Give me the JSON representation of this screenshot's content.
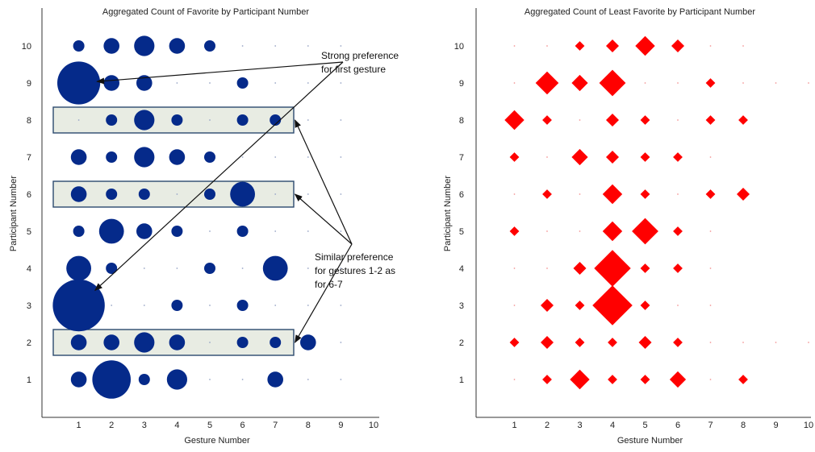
{
  "chart_data": [
    {
      "type": "scatter",
      "marker": "circle",
      "title": "Aggregated Count of Favorite by Participant Number",
      "xlabel": "Gesture Number",
      "ylabel": "Participant Number",
      "xlim": [
        0,
        10
      ],
      "ylim": [
        0.5,
        10.5
      ],
      "xticks": [
        "1",
        "2",
        "3",
        "4",
        "5",
        "6",
        "7",
        "8",
        "9",
        "10"
      ],
      "yticks": [
        "1",
        "2",
        "3",
        "4",
        "5",
        "6",
        "7",
        "8",
        "9",
        "10"
      ],
      "grid": false,
      "color": "#052a8a",
      "points": [
        {
          "x": 1,
          "y": 10,
          "size": 1
        },
        {
          "x": 2,
          "y": 10,
          "size": 2
        },
        {
          "x": 3,
          "y": 10,
          "size": 3
        },
        {
          "x": 4,
          "y": 10,
          "size": 2
        },
        {
          "x": 5,
          "y": 10,
          "size": 1
        },
        {
          "x": 6,
          "y": 10,
          "size": 0
        },
        {
          "x": 7,
          "y": 10,
          "size": 0
        },
        {
          "x": 8,
          "y": 10,
          "size": 0
        },
        {
          "x": 9,
          "y": 10,
          "size": 0
        },
        {
          "x": 1,
          "y": 9,
          "size": 8
        },
        {
          "x": 2,
          "y": 9,
          "size": 2
        },
        {
          "x": 3,
          "y": 9,
          "size": 2
        },
        {
          "x": 4,
          "y": 9,
          "size": 0
        },
        {
          "x": 5,
          "y": 9,
          "size": 0
        },
        {
          "x": 6,
          "y": 9,
          "size": 1
        },
        {
          "x": 7,
          "y": 9,
          "size": 0
        },
        {
          "x": 8,
          "y": 9,
          "size": 0
        },
        {
          "x": 9,
          "y": 9,
          "size": 0
        },
        {
          "x": 1,
          "y": 8,
          "size": 0
        },
        {
          "x": 2,
          "y": 8,
          "size": 1
        },
        {
          "x": 3,
          "y": 8,
          "size": 3
        },
        {
          "x": 4,
          "y": 8,
          "size": 1
        },
        {
          "x": 5,
          "y": 8,
          "size": 0
        },
        {
          "x": 6,
          "y": 8,
          "size": 1
        },
        {
          "x": 7,
          "y": 8,
          "size": 1
        },
        {
          "x": 8,
          "y": 8,
          "size": 0
        },
        {
          "x": 9,
          "y": 8,
          "size": 0
        },
        {
          "x": 1,
          "y": 7,
          "size": 2
        },
        {
          "x": 2,
          "y": 7,
          "size": 1
        },
        {
          "x": 3,
          "y": 7,
          "size": 3
        },
        {
          "x": 4,
          "y": 7,
          "size": 2
        },
        {
          "x": 5,
          "y": 7,
          "size": 1
        },
        {
          "x": 6,
          "y": 7,
          "size": 0
        },
        {
          "x": 7,
          "y": 7,
          "size": 0
        },
        {
          "x": 8,
          "y": 7,
          "size": 0
        },
        {
          "x": 9,
          "y": 7,
          "size": 0
        },
        {
          "x": 1,
          "y": 6,
          "size": 2
        },
        {
          "x": 2,
          "y": 6,
          "size": 1
        },
        {
          "x": 3,
          "y": 6,
          "size": 1
        },
        {
          "x": 4,
          "y": 6,
          "size": 0
        },
        {
          "x": 5,
          "y": 6,
          "size": 1
        },
        {
          "x": 6,
          "y": 6,
          "size": 4
        },
        {
          "x": 7,
          "y": 6,
          "size": 0
        },
        {
          "x": 8,
          "y": 6,
          "size": 0
        },
        {
          "x": 9,
          "y": 6,
          "size": 0
        },
        {
          "x": 1,
          "y": 5,
          "size": 1
        },
        {
          "x": 2,
          "y": 5,
          "size": 4
        },
        {
          "x": 3,
          "y": 5,
          "size": 2
        },
        {
          "x": 4,
          "y": 5,
          "size": 1
        },
        {
          "x": 5,
          "y": 5,
          "size": 0
        },
        {
          "x": 6,
          "y": 5,
          "size": 1
        },
        {
          "x": 7,
          "y": 5,
          "size": 0
        },
        {
          "x": 8,
          "y": 5,
          "size": 0
        },
        {
          "x": 9,
          "y": 5,
          "size": 0
        },
        {
          "x": 1,
          "y": 4,
          "size": 4
        },
        {
          "x": 2,
          "y": 4,
          "size": 1
        },
        {
          "x": 3,
          "y": 4,
          "size": 0
        },
        {
          "x": 4,
          "y": 4,
          "size": 0
        },
        {
          "x": 5,
          "y": 4,
          "size": 1
        },
        {
          "x": 6,
          "y": 4,
          "size": 0
        },
        {
          "x": 7,
          "y": 4,
          "size": 4
        },
        {
          "x": 8,
          "y": 4,
          "size": 0
        },
        {
          "x": 9,
          "y": 4,
          "size": 0
        },
        {
          "x": 1,
          "y": 3,
          "size": 10
        },
        {
          "x": 2,
          "y": 3,
          "size": 0
        },
        {
          "x": 3,
          "y": 3,
          "size": 0
        },
        {
          "x": 4,
          "y": 3,
          "size": 1
        },
        {
          "x": 5,
          "y": 3,
          "size": 0
        },
        {
          "x": 6,
          "y": 3,
          "size": 1
        },
        {
          "x": 7,
          "y": 3,
          "size": 0
        },
        {
          "x": 8,
          "y": 3,
          "size": 0
        },
        {
          "x": 9,
          "y": 3,
          "size": 0
        },
        {
          "x": 1,
          "y": 2,
          "size": 2
        },
        {
          "x": 2,
          "y": 2,
          "size": 2
        },
        {
          "x": 3,
          "y": 2,
          "size": 3
        },
        {
          "x": 4,
          "y": 2,
          "size": 2
        },
        {
          "x": 5,
          "y": 2,
          "size": 0
        },
        {
          "x": 6,
          "y": 2,
          "size": 1
        },
        {
          "x": 7,
          "y": 2,
          "size": 1
        },
        {
          "x": 8,
          "y": 2,
          "size": 2
        },
        {
          "x": 9,
          "y": 2,
          "size": 0
        },
        {
          "x": 1,
          "y": 1,
          "size": 2
        },
        {
          "x": 2,
          "y": 1,
          "size": 7
        },
        {
          "x": 3,
          "y": 1,
          "size": 1
        },
        {
          "x": 4,
          "y": 1,
          "size": 3
        },
        {
          "x": 5,
          "y": 1,
          "size": 0
        },
        {
          "x": 6,
          "y": 1,
          "size": 0
        },
        {
          "x": 7,
          "y": 1,
          "size": 2
        },
        {
          "x": 8,
          "y": 1,
          "size": 0
        },
        {
          "x": 9,
          "y": 1,
          "size": 0
        }
      ],
      "highlight_rows": [
        8,
        6,
        2
      ],
      "highlight_color": "#e8ece3",
      "highlight_border": "#2c4a6e",
      "annotations": [
        {
          "text": [
            "Strong preference",
            "for first gesture"
          ],
          "points_to": [
            [
              1,
              9
            ],
            [
              1,
              3
            ]
          ]
        },
        {
          "text": [
            "Similar preference",
            "for gestures 1-2 as",
            "for 6-7"
          ],
          "points_to": [
            [
              7.6,
              8
            ],
            [
              7.6,
              6
            ],
            [
              7.6,
              2
            ]
          ]
        }
      ]
    },
    {
      "type": "scatter",
      "marker": "diamond",
      "title": "Aggregated Count of Least Favorite by Participant Number",
      "xlabel": "Gesture Number",
      "ylabel": "Participant Number",
      "xlim": [
        0,
        10
      ],
      "ylim": [
        0.5,
        10.5
      ],
      "xticks": [
        "1",
        "2",
        "3",
        "4",
        "5",
        "6",
        "7",
        "8",
        "9",
        "10"
      ],
      "yticks": [
        "1",
        "2",
        "3",
        "4",
        "5",
        "6",
        "7",
        "8",
        "9",
        "10"
      ],
      "grid": false,
      "color": "#ff0000",
      "points": [
        {
          "x": 1,
          "y": 10,
          "size": 0
        },
        {
          "x": 2,
          "y": 10,
          "size": 0
        },
        {
          "x": 3,
          "y": 10,
          "size": 1
        },
        {
          "x": 4,
          "y": 10,
          "size": 2
        },
        {
          "x": 5,
          "y": 10,
          "size": 4
        },
        {
          "x": 6,
          "y": 10,
          "size": 2
        },
        {
          "x": 7,
          "y": 10,
          "size": 0
        },
        {
          "x": 8,
          "y": 10,
          "size": 0
        },
        {
          "x": 1,
          "y": 9,
          "size": 0
        },
        {
          "x": 2,
          "y": 9,
          "size": 5
        },
        {
          "x": 3,
          "y": 9,
          "size": 3
        },
        {
          "x": 4,
          "y": 9,
          "size": 6
        },
        {
          "x": 5,
          "y": 9,
          "size": 0
        },
        {
          "x": 6,
          "y": 9,
          "size": 0
        },
        {
          "x": 7,
          "y": 9,
          "size": 1
        },
        {
          "x": 8,
          "y": 9,
          "size": 0
        },
        {
          "x": 9,
          "y": 9,
          "size": 0
        },
        {
          "x": 10,
          "y": 9,
          "size": 0
        },
        {
          "x": 1,
          "y": 8,
          "size": 4
        },
        {
          "x": 2,
          "y": 8,
          "size": 1
        },
        {
          "x": 3,
          "y": 8,
          "size": 0
        },
        {
          "x": 4,
          "y": 8,
          "size": 2
        },
        {
          "x": 5,
          "y": 8,
          "size": 1
        },
        {
          "x": 6,
          "y": 8,
          "size": 0
        },
        {
          "x": 7,
          "y": 8,
          "size": 1
        },
        {
          "x": 8,
          "y": 8,
          "size": 1
        },
        {
          "x": 1,
          "y": 7,
          "size": 1
        },
        {
          "x": 2,
          "y": 7,
          "size": 0
        },
        {
          "x": 3,
          "y": 7,
          "size": 3
        },
        {
          "x": 4,
          "y": 7,
          "size": 2
        },
        {
          "x": 5,
          "y": 7,
          "size": 1
        },
        {
          "x": 6,
          "y": 7,
          "size": 1
        },
        {
          "x": 7,
          "y": 7,
          "size": 0
        },
        {
          "x": 1,
          "y": 6,
          "size": 0
        },
        {
          "x": 2,
          "y": 6,
          "size": 1
        },
        {
          "x": 3,
          "y": 6,
          "size": 0
        },
        {
          "x": 4,
          "y": 6,
          "size": 4
        },
        {
          "x": 5,
          "y": 6,
          "size": 1
        },
        {
          "x": 6,
          "y": 6,
          "size": 0
        },
        {
          "x": 7,
          "y": 6,
          "size": 1
        },
        {
          "x": 8,
          "y": 6,
          "size": 2
        },
        {
          "x": 1,
          "y": 5,
          "size": 1
        },
        {
          "x": 2,
          "y": 5,
          "size": 0
        },
        {
          "x": 3,
          "y": 5,
          "size": 0
        },
        {
          "x": 4,
          "y": 5,
          "size": 4
        },
        {
          "x": 5,
          "y": 5,
          "size": 6
        },
        {
          "x": 6,
          "y": 5,
          "size": 1
        },
        {
          "x": 7,
          "y": 5,
          "size": 0
        },
        {
          "x": 1,
          "y": 4,
          "size": 0
        },
        {
          "x": 2,
          "y": 4,
          "size": 0
        },
        {
          "x": 3,
          "y": 4,
          "size": 2
        },
        {
          "x": 4,
          "y": 4,
          "size": 9
        },
        {
          "x": 5,
          "y": 4,
          "size": 1
        },
        {
          "x": 6,
          "y": 4,
          "size": 1
        },
        {
          "x": 7,
          "y": 4,
          "size": 0
        },
        {
          "x": 1,
          "y": 3,
          "size": 0
        },
        {
          "x": 2,
          "y": 3,
          "size": 2
        },
        {
          "x": 3,
          "y": 3,
          "size": 1
        },
        {
          "x": 4,
          "y": 3,
          "size": 10
        },
        {
          "x": 5,
          "y": 3,
          "size": 1
        },
        {
          "x": 6,
          "y": 3,
          "size": 0
        },
        {
          "x": 7,
          "y": 3,
          "size": 0
        },
        {
          "x": 1,
          "y": 2,
          "size": 1
        },
        {
          "x": 2,
          "y": 2,
          "size": 2
        },
        {
          "x": 3,
          "y": 2,
          "size": 1
        },
        {
          "x": 4,
          "y": 2,
          "size": 1
        },
        {
          "x": 5,
          "y": 2,
          "size": 2
        },
        {
          "x": 6,
          "y": 2,
          "size": 1
        },
        {
          "x": 7,
          "y": 2,
          "size": 0
        },
        {
          "x": 8,
          "y": 2,
          "size": 0
        },
        {
          "x": 9,
          "y": 2,
          "size": 0
        },
        {
          "x": 10,
          "y": 2,
          "size": 0
        },
        {
          "x": 1,
          "y": 1,
          "size": 0
        },
        {
          "x": 2,
          "y": 1,
          "size": 1
        },
        {
          "x": 3,
          "y": 1,
          "size": 4
        },
        {
          "x": 4,
          "y": 1,
          "size": 1
        },
        {
          "x": 5,
          "y": 1,
          "size": 1
        },
        {
          "x": 6,
          "y": 1,
          "size": 3
        },
        {
          "x": 7,
          "y": 1,
          "size": 0
        },
        {
          "x": 8,
          "y": 1,
          "size": 1
        }
      ]
    }
  ]
}
